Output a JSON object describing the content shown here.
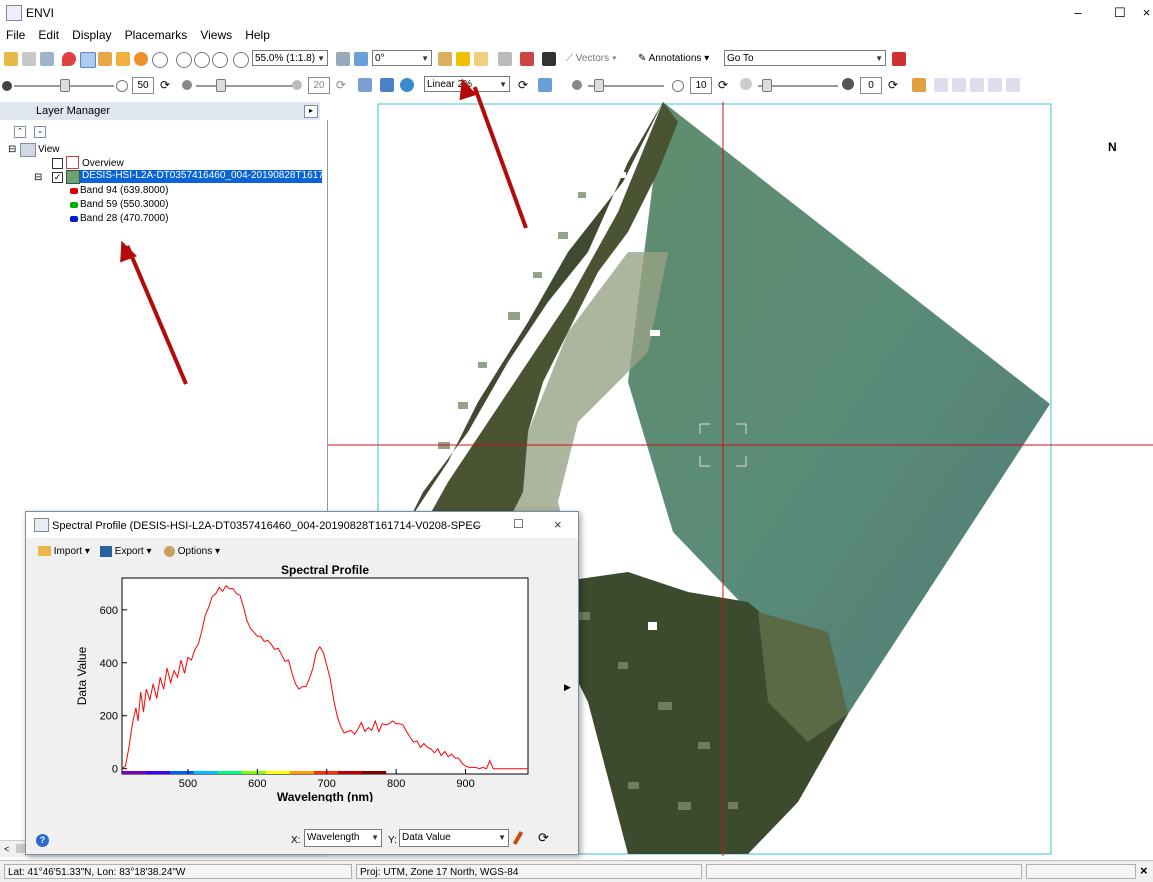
{
  "window": {
    "title": "ENVI",
    "minimize": "–",
    "maximize": "☐",
    "close": "×"
  },
  "menu": [
    "File",
    "Edit",
    "Display",
    "Placemarks",
    "Views",
    "Help"
  ],
  "toolbar1": {
    "zoom": "55.0% (1:1.8)",
    "rotation": "0°",
    "vectors": "Vectors",
    "annotations": "Annotations",
    "goto": "Go To"
  },
  "toolbar2": {
    "brightness": "50",
    "contrast": "20",
    "stretch": "Linear 2%",
    "sharpen": "10",
    "transparency": "0"
  },
  "layer_manager": {
    "title": "Layer Manager",
    "view_label": "View",
    "overview_label": "Overview",
    "raster_label": "DESIS-HSI-L2A-DT0357416460_004-20190828T161714",
    "bands": [
      {
        "label": "Band 94 (639.8000)",
        "color": "#d40000"
      },
      {
        "label": "Band 59 (550.3000)",
        "color": "#00b000"
      },
      {
        "label": "Band 28 (470.7000)",
        "color": "#0020c8"
      }
    ]
  },
  "north_arrow": "N",
  "status": {
    "latlon": "Lat: 41°46'51.33\"N, Lon: 83°18'38.24\"W",
    "proj": "Proj: UTM, Zone 17 North, WGS-84"
  },
  "spectral_window": {
    "title": "Spectral Profile (DESIS-HSI-L2A-DT0357416460_004-20190828T161714-V0208-SPECTRA...",
    "import": "Import",
    "export": "Export",
    "options": "Options",
    "x_label": "X:",
    "x_value": "Wavelength",
    "y_label": "Y:",
    "y_value": "Data Value"
  },
  "chart_data": {
    "type": "line",
    "title": "Spectral Profile",
    "xlabel": "Wavelength (nm)",
    "ylabel": "Data Value",
    "xlim": [
      405,
      990
    ],
    "ylim": [
      -20,
      720
    ],
    "xticks": [
      500,
      600,
      700,
      800,
      900
    ],
    "yticks": [
      0,
      200,
      400,
      600
    ],
    "grid": false,
    "series": [
      {
        "color": "#ff0000",
        "x": [
          405,
          410,
          415,
          420,
          425,
          428,
          432,
          436,
          440,
          445,
          450,
          455,
          460,
          465,
          470,
          475,
          480,
          485,
          490,
          495,
          500,
          505,
          510,
          515,
          520,
          525,
          530,
          535,
          540,
          545,
          550,
          555,
          560,
          565,
          570,
          575,
          580,
          585,
          590,
          595,
          600,
          605,
          610,
          615,
          620,
          625,
          630,
          635,
          640,
          645,
          650,
          655,
          660,
          665,
          670,
          675,
          680,
          685,
          690,
          695,
          700,
          705,
          710,
          715,
          720,
          725,
          730,
          735,
          740,
          745,
          750,
          755,
          760,
          765,
          770,
          775,
          780,
          785,
          790,
          795,
          800,
          805,
          810,
          815,
          820,
          825,
          830,
          835,
          840,
          845,
          850,
          855,
          860,
          865,
          870,
          875,
          880,
          885,
          890,
          895,
          900,
          905,
          910,
          915,
          920,
          925,
          930,
          935,
          940,
          945,
          950,
          960,
          970,
          980,
          990
        ],
        "y": [
          0,
          10,
          80,
          170,
          230,
          180,
          290,
          215,
          300,
          260,
          320,
          265,
          345,
          300,
          380,
          325,
          370,
          345,
          410,
          360,
          420,
          410,
          450,
          470,
          520,
          580,
          610,
          650,
          660,
          685,
          670,
          690,
          680,
          680,
          660,
          655,
          610,
          560,
          530,
          515,
          500,
          500,
          480,
          485,
          470,
          450,
          455,
          430,
          405,
          410,
          360,
          320,
          300,
          310,
          310,
          340,
          380,
          440,
          460,
          440,
          390,
          340,
          260,
          200,
          160,
          135,
          140,
          145,
          130,
          150,
          175,
          140,
          155,
          145,
          180,
          140,
          170,
          165,
          170,
          180,
          170,
          170,
          165,
          140,
          120,
          100,
          105,
          80,
          95,
          80,
          75,
          60,
          75,
          50,
          65,
          45,
          55,
          40,
          40,
          20,
          10,
          5,
          5,
          5,
          0,
          5,
          0,
          30,
          0,
          0,
          0,
          0,
          0,
          0,
          0
        ]
      }
    ]
  }
}
